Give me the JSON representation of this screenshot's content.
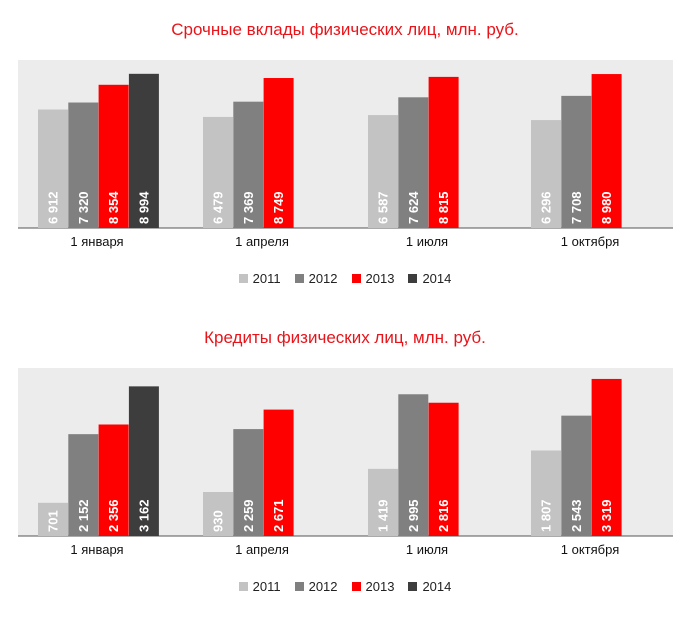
{
  "colors": {
    "2011": "#c3c3c3",
    "2012": "#808080",
    "2013": "#ff0000",
    "2014": "#3d3d3d",
    "title": "#e8141a",
    "plot_bg": "#ececec"
  },
  "chart_data": [
    {
      "type": "bar",
      "title": "Срочные вклады физических лиц, млн. руб.",
      "categories": [
        "1 января",
        "1 апреля",
        "1 июля",
        "1 октября"
      ],
      "ylim": [
        0,
        9800
      ],
      "series": [
        {
          "name": "2011",
          "values": [
            6912,
            6479,
            6587,
            6296
          ],
          "labels": [
            "6 912",
            "6 479",
            "6 587",
            "6 296"
          ]
        },
        {
          "name": "2012",
          "values": [
            7320,
            7369,
            7624,
            7708
          ],
          "labels": [
            "7 320",
            "7 369",
            "7 624",
            "7 708"
          ]
        },
        {
          "name": "2013",
          "values": [
            8354,
            8749,
            8815,
            8980
          ],
          "labels": [
            "8 354",
            "8 749",
            "8 815",
            "8 980"
          ]
        },
        {
          "name": "2014",
          "values": [
            8994,
            null,
            null,
            null
          ],
          "labels": [
            "8 994",
            null,
            null,
            null
          ]
        }
      ],
      "legend": [
        "2011",
        "2012",
        "2013",
        "2014"
      ]
    },
    {
      "type": "bar",
      "title": "Кредиты физических лиц, млн. руб.",
      "categories": [
        "1 января",
        "1 апреля",
        "1 июля",
        "1 октября"
      ],
      "ylim": [
        0,
        3550
      ],
      "series": [
        {
          "name": "2011",
          "values": [
            701,
            930,
            1419,
            1807
          ],
          "labels": [
            "701",
            "930",
            "1 419",
            "1 807"
          ]
        },
        {
          "name": "2012",
          "values": [
            2152,
            2259,
            2995,
            2543
          ],
          "labels": [
            "2 152",
            "2 259",
            "2 995",
            "2 543"
          ]
        },
        {
          "name": "2013",
          "values": [
            2356,
            2671,
            2816,
            3319
          ],
          "labels": [
            "2 356",
            "2 671",
            "2 816",
            "3 319"
          ]
        },
        {
          "name": "2014",
          "values": [
            3162,
            null,
            null,
            null
          ],
          "labels": [
            "3 162",
            null,
            null,
            null
          ]
        }
      ],
      "legend": [
        "2011",
        "2012",
        "2013",
        "2014"
      ]
    }
  ]
}
